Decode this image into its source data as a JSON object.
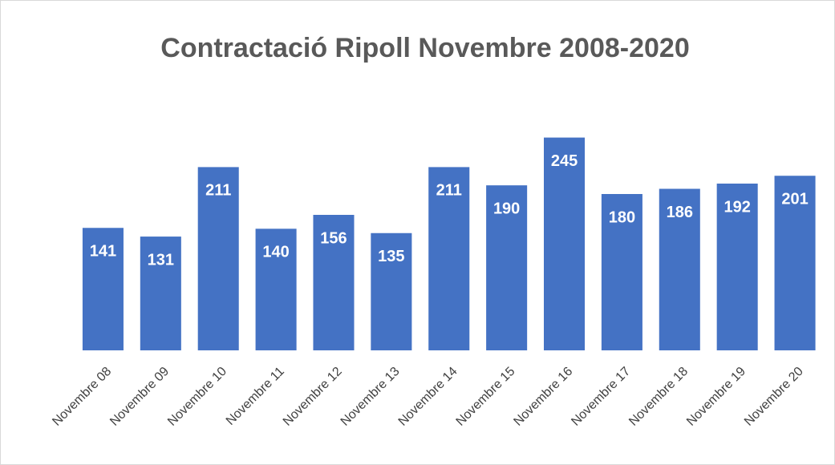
{
  "chart_data": {
    "type": "bar",
    "title": "Contractació Ripoll Novembre 2008-2020",
    "categories": [
      "Novembre 08",
      "Novembre 09",
      "Novembre 10",
      "Novembre 11",
      "Novembre 12",
      "Novembre 13",
      "Novembre 14",
      "Novembre 15",
      "Novembre 16",
      "Novembre 17",
      "Novembre 18",
      "Novembre 19",
      "Novembre 20"
    ],
    "values": [
      141,
      131,
      211,
      140,
      156,
      135,
      211,
      190,
      245,
      180,
      186,
      192,
      201
    ],
    "color": "#4472c4",
    "ylim": [
      0,
      300
    ]
  }
}
